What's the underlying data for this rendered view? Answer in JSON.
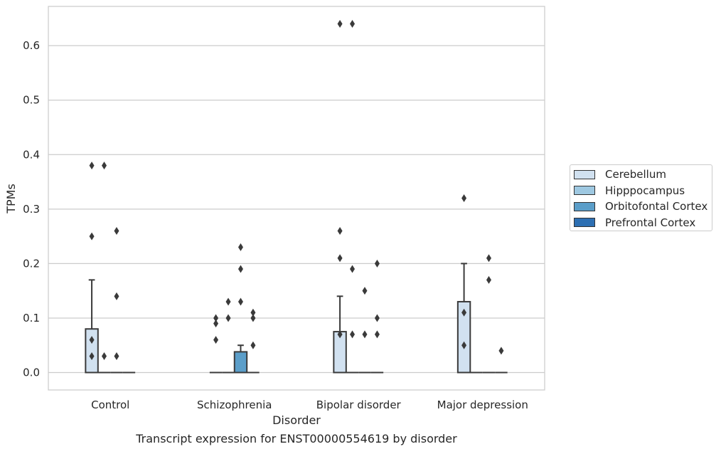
{
  "chart_data": {
    "type": "box",
    "title": "Transcript expression for ENST00000554619 by disorder",
    "xlabel": "Disorder",
    "ylabel": "TPMs",
    "ylim": [
      -0.032,
      0.672
    ],
    "yticks": [
      0.0,
      0.1,
      0.2,
      0.3,
      0.4,
      0.5,
      0.6
    ],
    "ytick_labels": [
      "0.0",
      "0.1",
      "0.2",
      "0.3",
      "0.4",
      "0.5",
      "0.6"
    ],
    "categories": [
      "Control",
      "Schizophrenia",
      "Bipolar disorder",
      "Major depression"
    ],
    "grid": "horizontal",
    "legend_position": "right",
    "series": [
      {
        "name": "Cerebellum",
        "color": "#d1e1f0",
        "boxes": [
          {
            "min": 0.0,
            "q1": 0.0,
            "median": 0.0,
            "q3": 0.08,
            "max": 0.17,
            "outliers": [
              0.25,
              0.06,
              0.38,
              0.03
            ]
          },
          {
            "min": 0.0,
            "q1": 0.0,
            "median": 0.0,
            "q3": 0.0,
            "max": 0.0,
            "outliers": [
              0.1,
              0.09,
              0.06
            ]
          },
          {
            "min": 0.0,
            "q1": 0.0,
            "median": 0.0,
            "q3": 0.075,
            "max": 0.14,
            "outliers": [
              0.26,
              0.21,
              0.07,
              0.64
            ]
          },
          {
            "min": 0.0,
            "q1": 0.0,
            "median": 0.0,
            "q3": 0.13,
            "max": 0.2,
            "outliers": [
              0.32,
              0.11,
              0.05
            ]
          }
        ]
      },
      {
        "name": "Hipppocampus",
        "color": "#9ec8e1",
        "boxes": [
          {
            "min": 0.0,
            "q1": 0.0,
            "median": 0.0,
            "q3": 0.0,
            "max": 0.0,
            "outliers": [
              0.38,
              0.03
            ]
          },
          {
            "min": 0.0,
            "q1": 0.0,
            "median": 0.0,
            "q3": 0.0,
            "max": 0.0,
            "outliers": [
              0.13,
              0.1
            ]
          },
          {
            "min": 0.0,
            "q1": 0.0,
            "median": 0.0,
            "q3": 0.0,
            "max": 0.0,
            "outliers": [
              0.64,
              0.19,
              0.07
            ]
          },
          {
            "min": 0.0,
            "q1": 0.0,
            "median": 0.0,
            "q3": 0.0,
            "max": 0.0,
            "outliers": []
          }
        ]
      },
      {
        "name": "Orbitofontal Cortex",
        "color": "#5b9ec9",
        "boxes": [
          {
            "min": 0.0,
            "q1": 0.0,
            "median": 0.0,
            "q3": 0.0,
            "max": 0.0,
            "outliers": [
              0.26,
              0.14,
              0.03
            ]
          },
          {
            "min": 0.0,
            "q1": 0.0,
            "median": 0.0,
            "q3": 0.038,
            "max": 0.05,
            "outliers": [
              0.23,
              0.19,
              0.13
            ]
          },
          {
            "min": 0.0,
            "q1": 0.0,
            "median": 0.0,
            "q3": 0.0,
            "max": 0.0,
            "outliers": [
              0.15,
              0.07
            ]
          },
          {
            "min": 0.0,
            "q1": 0.0,
            "median": 0.0,
            "q3": 0.0,
            "max": 0.0,
            "outliers": [
              0.21,
              0.17
            ]
          }
        ]
      },
      {
        "name": "Prefrontal Cortex",
        "color": "#2d6fb2",
        "boxes": [
          {
            "min": 0.0,
            "q1": 0.0,
            "median": 0.0,
            "q3": 0.0,
            "max": 0.0,
            "outliers": []
          },
          {
            "min": 0.0,
            "q1": 0.0,
            "median": 0.0,
            "q3": 0.0,
            "max": 0.0,
            "outliers": [
              0.11,
              0.1,
              0.05
            ]
          },
          {
            "min": 0.0,
            "q1": 0.0,
            "median": 0.0,
            "q3": 0.0,
            "max": 0.0,
            "outliers": [
              0.2,
              0.1,
              0.07
            ]
          },
          {
            "min": 0.0,
            "q1": 0.0,
            "median": 0.0,
            "q3": 0.0,
            "max": 0.0,
            "outliers": [
              0.04
            ]
          }
        ]
      }
    ]
  }
}
